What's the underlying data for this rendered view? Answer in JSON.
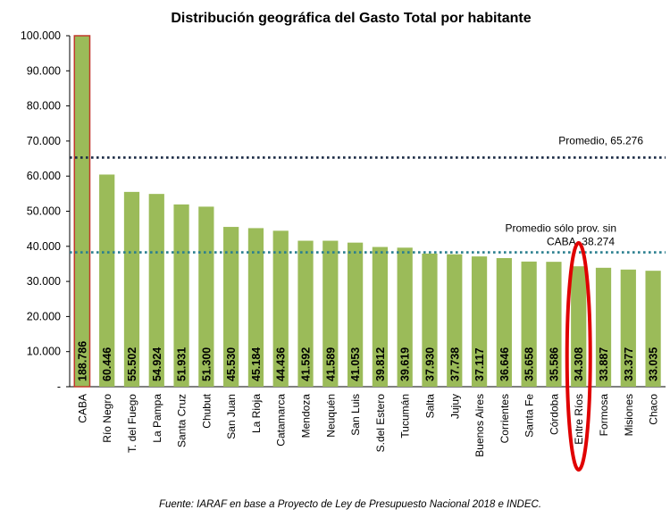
{
  "chart_data": {
    "type": "bar",
    "title": "Distribución geográfica del Gasto Total por habitante",
    "xlabel": "",
    "ylabel": "",
    "ylim": [
      0,
      100000
    ],
    "y_ticks": [
      "-",
      "10.000",
      "20.000",
      "30.000",
      "40.000",
      "50.000",
      "60.000",
      "70.000",
      "80.000",
      "90.000",
      "100.000"
    ],
    "categories": [
      "CABA",
      "Río Negro",
      "T. del Fuego",
      "La Pampa",
      "Santa Cruz",
      "Chubut",
      "San Juan",
      "La Rioja",
      "Catamarca",
      "Mendoza",
      "Neuquén",
      "San Luis",
      "S.del Estero",
      "Tucumán",
      "Salta",
      "Jujuy",
      "Buenos Aires",
      "Corrientes",
      "Santa Fe",
      "Córdoba",
      "Entre Ríos",
      "Formosa",
      "Misiones",
      "Chaco"
    ],
    "values": [
      188786,
      60446,
      55502,
      54924,
      51931,
      51300,
      45530,
      45184,
      44436,
      41592,
      41589,
      41053,
      39812,
      39619,
      37930,
      37738,
      37117,
      36646,
      35658,
      35586,
      34308,
      33887,
      33377,
      33035
    ],
    "value_labels": [
      "188.786",
      "60.446",
      "55.502",
      "54.924",
      "51.931",
      "51.300",
      "45.530",
      "45.184",
      "44.436",
      "41.592",
      "41.589",
      "41.053",
      "39.812",
      "39.619",
      "37.930",
      "37.738",
      "37.117",
      "36.646",
      "35.658",
      "35.586",
      "34.308",
      "33.887",
      "33.377",
      "33.035"
    ],
    "reference_lines": [
      {
        "value": 65276,
        "label": "Promedio, 65.276",
        "color": "#1a2a44"
      },
      {
        "value": 38274,
        "label_lines": [
          "Promedio sólo prov. sin",
          "CABA, 38.274"
        ],
        "color": "#2a7f8f"
      }
    ],
    "highlight": {
      "category": "Entre Ríos",
      "shape": "ellipse",
      "color": "#e00000"
    },
    "bar_color": "#9bbb59",
    "caba_outline_color": "#c0392b",
    "grid": false,
    "legend": "none"
  },
  "source_note": "Fuente: IARAF en base a Proyecto de Ley de Presupuesto Nacional 2018 e INDEC."
}
